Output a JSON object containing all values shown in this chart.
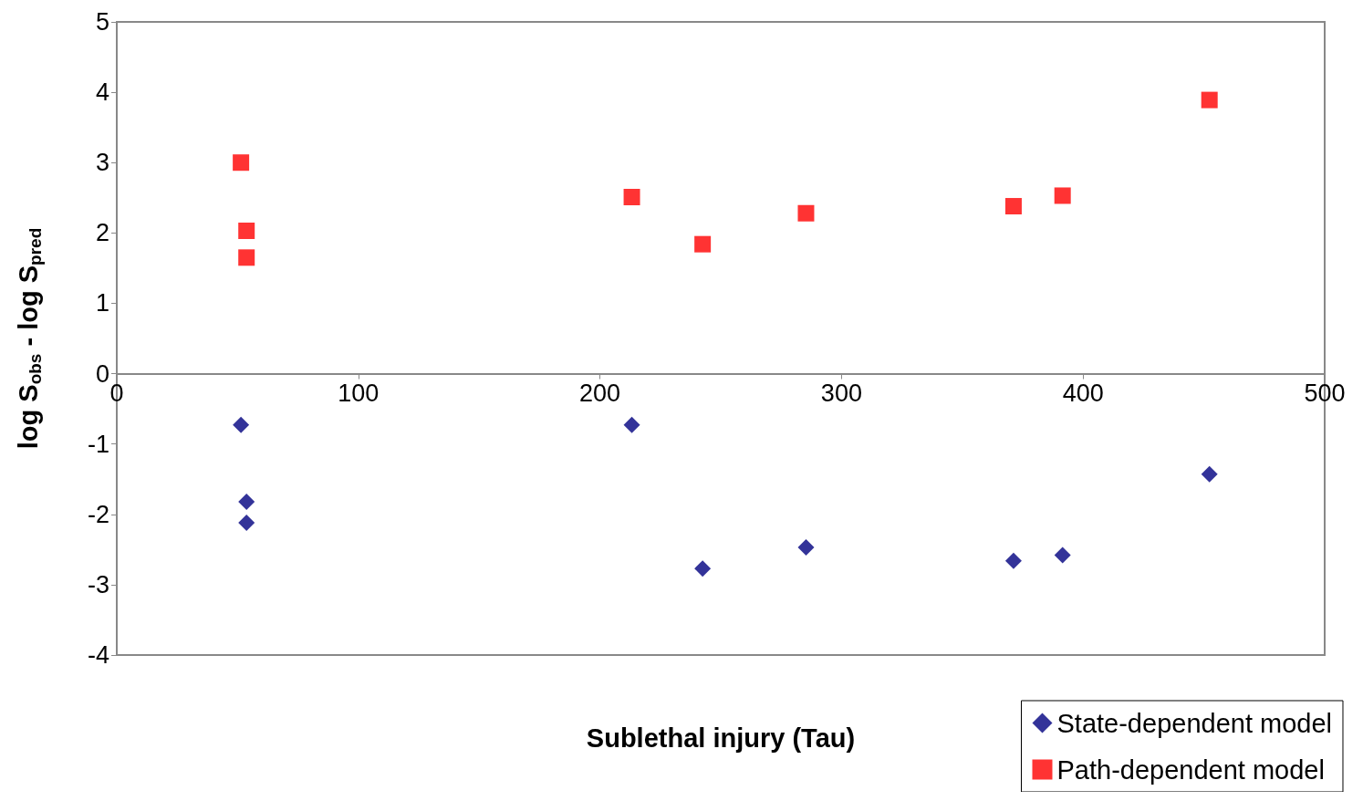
{
  "chart_data": {
    "type": "scatter",
    "xlabel": "Sublethal injury (Tau)",
    "ylabel": "log S$_{obs}$ - log S$_{pred}$",
    "xlim": [
      0,
      500
    ],
    "xticks": [
      0,
      100,
      200,
      300,
      400,
      500
    ],
    "ylim": [
      -4,
      5
    ],
    "yticks": [
      -4,
      -3,
      -2,
      -1,
      0,
      1,
      2,
      3,
      4,
      5
    ],
    "legend": "bottom right",
    "series": [
      {
        "name": "State-dependent model",
        "color": "#000080",
        "marker": "diamond",
        "x": [
          51.4,
          53.7,
          53.7,
          213.2,
          242.5,
          285.3,
          371.2,
          391.5,
          452.3
        ],
        "values": [
          -0.73,
          -1.82,
          -2.12,
          -0.73,
          -2.77,
          -2.47,
          -2.66,
          -2.58,
          -1.43
        ]
      },
      {
        "name": "Path-dependent model",
        "color": "#ff0000",
        "marker": "square",
        "x": [
          51.4,
          53.7,
          53.7,
          213.2,
          242.5,
          285.3,
          371.2,
          391.5,
          452.3
        ],
        "values": [
          3.0,
          2.03,
          1.65,
          2.51,
          1.84,
          2.28,
          2.38,
          2.53,
          3.89
        ]
      }
    ]
  }
}
